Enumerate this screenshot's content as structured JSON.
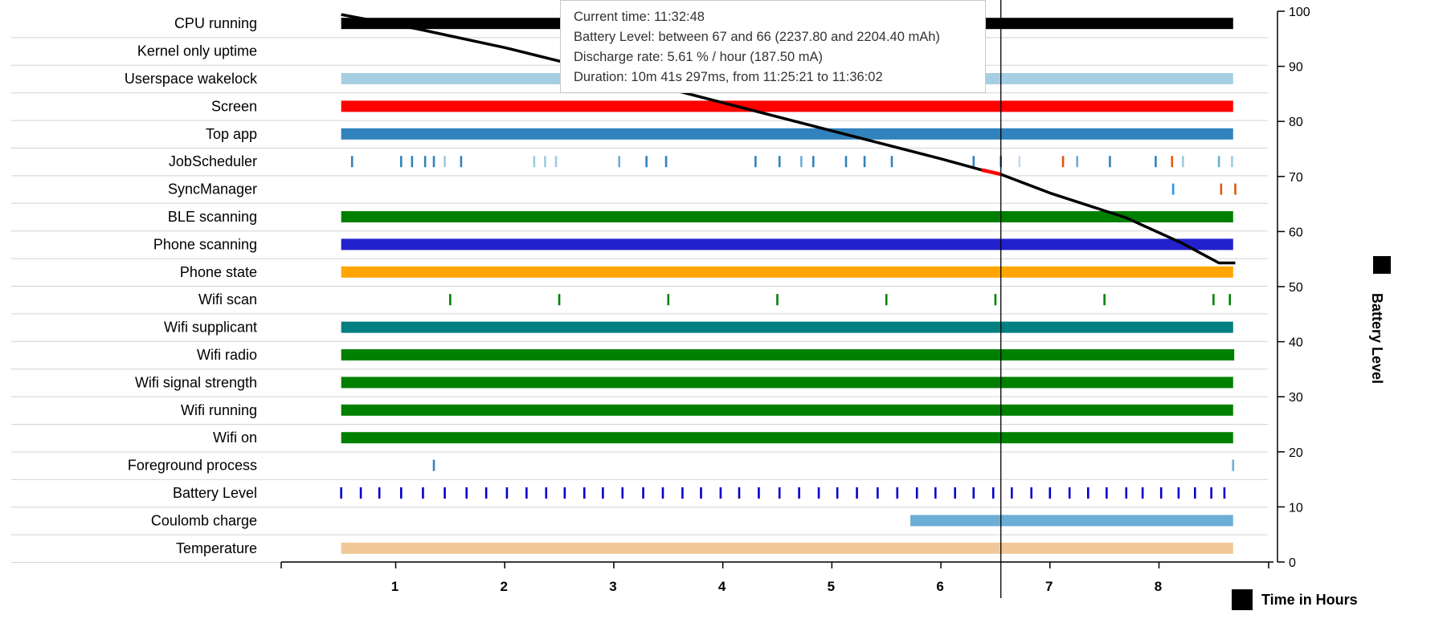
{
  "chart_data": {
    "type": "timeline",
    "rows": [
      {
        "name": "CPU running",
        "color": "#000000",
        "kind": "bar",
        "segments": [
          [
            0.5,
            8.68
          ]
        ]
      },
      {
        "name": "Kernel only uptime",
        "color": "#000000",
        "kind": "bar",
        "segments": []
      },
      {
        "name": "Userspace wakelock",
        "color": "#a6cee3",
        "kind": "bar",
        "segments": [
          [
            0.5,
            8.68
          ]
        ]
      },
      {
        "name": "Screen",
        "color": "#ff0000",
        "kind": "bar",
        "segments": [
          [
            0.5,
            8.68
          ]
        ]
      },
      {
        "name": "Top app",
        "color": "#3182bd",
        "kind": "bar",
        "segments": [
          [
            0.5,
            8.68
          ]
        ]
      },
      {
        "name": "JobScheduler",
        "color": "#3182bd",
        "kind": "ticks",
        "ticks": [
          [
            0.6,
            "#3182bd"
          ],
          [
            1.05,
            "#3182bd"
          ],
          [
            1.15,
            "#3182bd"
          ],
          [
            1.27,
            "#3182bd"
          ],
          [
            1.35,
            "#3182bd"
          ],
          [
            1.45,
            "#9ecae1"
          ],
          [
            1.6,
            "#3182bd"
          ],
          [
            2.27,
            "#9ecae1"
          ],
          [
            2.37,
            "#9ecae1"
          ],
          [
            2.47,
            "#9ecae1"
          ],
          [
            3.05,
            "#6baed6"
          ],
          [
            3.3,
            "#3182bd"
          ],
          [
            3.48,
            "#3182bd"
          ],
          [
            4.3,
            "#3182bd"
          ],
          [
            4.52,
            "#3182bd"
          ],
          [
            4.72,
            "#6baed6"
          ],
          [
            4.83,
            "#3182bd"
          ],
          [
            5.13,
            "#3182bd"
          ],
          [
            5.3,
            "#3182bd"
          ],
          [
            5.55,
            "#3182bd"
          ],
          [
            6.3,
            "#3182bd"
          ],
          [
            6.55,
            "#3182bd"
          ],
          [
            6.72,
            "#c6dbef"
          ],
          [
            7.12,
            "#e6550d"
          ],
          [
            7.25,
            "#6baed6"
          ],
          [
            7.55,
            "#3182bd"
          ],
          [
            7.97,
            "#3182bd"
          ],
          [
            8.12,
            "#e6550d"
          ],
          [
            8.22,
            "#9ecae1"
          ],
          [
            8.55,
            "#6baed6"
          ],
          [
            8.67,
            "#9ecae1"
          ]
        ]
      },
      {
        "name": "SyncManager",
        "color": "#1f9be6",
        "kind": "ticks",
        "ticks": [
          [
            8.13,
            "#1f9be6"
          ],
          [
            8.57,
            "#e6550d"
          ],
          [
            8.7,
            "#e6550d"
          ]
        ]
      },
      {
        "name": "BLE scanning",
        "color": "#008000",
        "kind": "bar",
        "segments": [
          [
            0.5,
            8.68
          ]
        ]
      },
      {
        "name": "Phone scanning",
        "color": "#2222cc",
        "kind": "bar",
        "segments": [
          [
            0.5,
            8.68
          ]
        ]
      },
      {
        "name": "Phone state",
        "color": "#ffa500",
        "kind": "bar",
        "segments": [
          [
            0.5,
            8.68
          ]
        ]
      },
      {
        "name": "Wifi scan",
        "color": "#008000",
        "kind": "ticks",
        "ticks": [
          [
            1.5,
            "#008000"
          ],
          [
            2.5,
            "#008000"
          ],
          [
            3.5,
            "#008000"
          ],
          [
            4.5,
            "#008000"
          ],
          [
            5.5,
            "#008000"
          ],
          [
            6.5,
            "#008000"
          ],
          [
            7.5,
            "#008000"
          ],
          [
            8.5,
            "#008000"
          ],
          [
            8.65,
            "#008000"
          ]
        ]
      },
      {
        "name": "Wifi supplicant",
        "color": "#008080",
        "kind": "bar",
        "segments": [
          [
            0.5,
            8.68
          ]
        ]
      },
      {
        "name": "Wifi radio",
        "color": "#008000",
        "kind": "bar",
        "segments": [
          [
            0.5,
            8.69
          ]
        ]
      },
      {
        "name": "Wifi signal strength",
        "color": "#008000",
        "kind": "bar",
        "segments": [
          [
            0.5,
            8.68
          ]
        ]
      },
      {
        "name": "Wifi running",
        "color": "#008000",
        "kind": "bar",
        "segments": [
          [
            0.5,
            8.68
          ]
        ]
      },
      {
        "name": "Wifi on",
        "color": "#008000",
        "kind": "bar",
        "segments": [
          [
            0.5,
            8.68
          ]
        ]
      },
      {
        "name": "Foreground process",
        "color": "#3182bd",
        "kind": "ticks",
        "ticks": [
          [
            1.35,
            "#3182bd"
          ],
          [
            8.68,
            "#6baed6"
          ]
        ]
      },
      {
        "name": "Battery Level",
        "color": "#0000cc",
        "kind": "ticks",
        "ticks": [
          [
            0.5,
            "#0000cc"
          ],
          [
            0.68,
            "#0000cc"
          ],
          [
            0.85,
            "#0000cc"
          ],
          [
            1.05,
            "#0000cc"
          ],
          [
            1.25,
            "#0000cc"
          ],
          [
            1.45,
            "#0000cc"
          ],
          [
            1.65,
            "#0000cc"
          ],
          [
            1.83,
            "#0000cc"
          ],
          [
            2.02,
            "#0000cc"
          ],
          [
            2.2,
            "#0000cc"
          ],
          [
            2.38,
            "#0000cc"
          ],
          [
            2.55,
            "#0000cc"
          ],
          [
            2.73,
            "#0000cc"
          ],
          [
            2.9,
            "#0000cc"
          ],
          [
            3.08,
            "#0000cc"
          ],
          [
            3.27,
            "#0000cc"
          ],
          [
            3.45,
            "#0000cc"
          ],
          [
            3.63,
            "#0000cc"
          ],
          [
            3.8,
            "#0000cc"
          ],
          [
            3.98,
            "#0000cc"
          ],
          [
            4.15,
            "#0000cc"
          ],
          [
            4.33,
            "#0000cc"
          ],
          [
            4.52,
            "#0000cc"
          ],
          [
            4.7,
            "#0000cc"
          ],
          [
            4.88,
            "#0000cc"
          ],
          [
            5.05,
            "#0000cc"
          ],
          [
            5.23,
            "#0000cc"
          ],
          [
            5.42,
            "#0000cc"
          ],
          [
            5.6,
            "#0000cc"
          ],
          [
            5.78,
            "#0000cc"
          ],
          [
            5.95,
            "#0000cc"
          ],
          [
            6.13,
            "#0000cc"
          ],
          [
            6.3,
            "#0000cc"
          ],
          [
            6.48,
            "#0000cc"
          ],
          [
            6.65,
            "#0000cc"
          ],
          [
            6.83,
            "#0000cc"
          ],
          [
            7.0,
            "#0000cc"
          ],
          [
            7.18,
            "#0000cc"
          ],
          [
            7.35,
            "#0000cc"
          ],
          [
            7.52,
            "#0000cc"
          ],
          [
            7.7,
            "#0000cc"
          ],
          [
            7.85,
            "#0000cc"
          ],
          [
            8.02,
            "#0000cc"
          ],
          [
            8.18,
            "#0000cc"
          ],
          [
            8.33,
            "#0000cc"
          ],
          [
            8.48,
            "#0000cc"
          ],
          [
            8.6,
            "#0000cc"
          ]
        ]
      },
      {
        "name": "Coulomb charge",
        "color": "#6baed6",
        "kind": "bar",
        "segments": [
          [
            5.72,
            8.68
          ]
        ]
      },
      {
        "name": "Temperature",
        "color": "#f0c898",
        "kind": "bar",
        "segments": [
          [
            0.5,
            8.68
          ]
        ]
      }
    ],
    "x_axis": {
      "label": "Time in Hours",
      "ticks": [
        1,
        2,
        3,
        4,
        5,
        6,
        7,
        8
      ],
      "range": [
        -0.05,
        9.05
      ]
    },
    "y_axis": {
      "label": "Battery Level",
      "ticks": [
        0,
        10,
        20,
        30,
        40,
        50,
        60,
        70,
        80,
        90,
        100
      ],
      "range": [
        0,
        100
      ],
      "position": "right"
    },
    "battery_series": {
      "name": "Battery Level",
      "color": "#000000",
      "x": [
        0.5,
        1.2,
        2.0,
        3.0,
        4.0,
        5.0,
        6.0,
        6.37,
        6.55,
        7.0,
        7.7,
        8.2,
        8.55,
        8.7
      ],
      "y": [
        99.4,
        96.8,
        93.4,
        88.5,
        83.4,
        78.3,
        73.2,
        71.2,
        70.4,
        67.0,
        62.5,
        58.0,
        54.3,
        54.3
      ],
      "highlight": {
        "from": 6.37,
        "to": 6.55,
        "color": "#ff0000"
      }
    },
    "cursor_x": 6.55,
    "tooltip": {
      "current_time": "Current time: 11:32:48",
      "battery_level": "Battery Level: between 67 and 66 (2237.80 and 2204.40 mAh)",
      "discharge_rate": "Discharge rate: 5.61 % / hour (187.50 mA)",
      "duration": "Duration: 10m 41s 297ms, from 11:25:21 to 11:36:02"
    },
    "legend": [
      {
        "label": "Battery Level",
        "color": "#000000",
        "placement": "right"
      },
      {
        "label": "Time in Hours",
        "color": "#000000",
        "placement": "bottom-right"
      }
    ]
  }
}
